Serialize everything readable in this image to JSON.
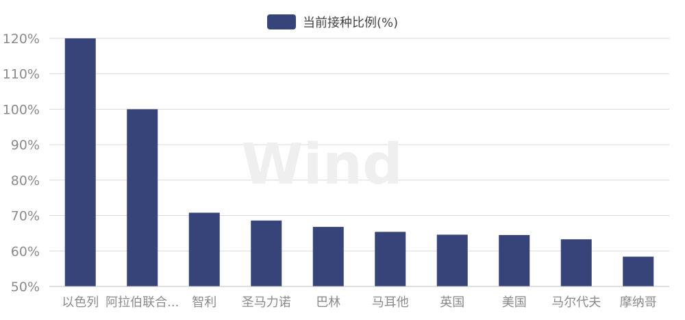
{
  "chart_data": {
    "type": "bar",
    "categories": [
      "以色列",
      "阿拉伯联合...",
      "智利",
      "圣马力诺",
      "巴林",
      "马耳他",
      "英国",
      "美国",
      "马尔代夫",
      "摩纳哥"
    ],
    "series": [
      {
        "name": "当前接种比例(%)",
        "values": [
          120,
          100,
          70.8,
          68.6,
          66.8,
          65.4,
          64.6,
          64.5,
          63.3,
          58.4
        ],
        "color": "#36447a"
      }
    ],
    "yticks": [
      "50%",
      "60%",
      "70%",
      "80%",
      "90%",
      "100%",
      "110%",
      "120%"
    ],
    "ylim": [
      50,
      120
    ],
    "grid": true,
    "legend_position": "top-center"
  },
  "watermark": "Wind"
}
